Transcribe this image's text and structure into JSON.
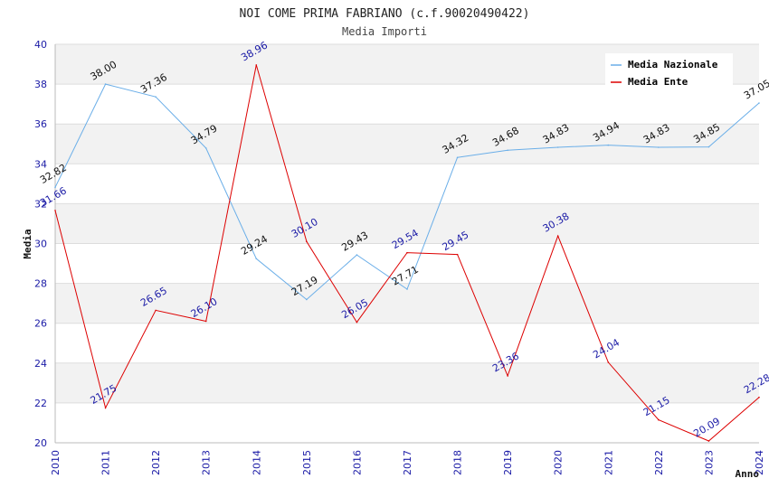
{
  "chart_data": {
    "type": "line",
    "title": "NOI COME PRIMA FABRIANO (c.f.90020490422)",
    "subtitle": "Media Importi",
    "xlabel": "Anno",
    "ylabel": "Media",
    "ylim": [
      20,
      40
    ],
    "yticks": [
      20,
      22,
      24,
      26,
      28,
      30,
      32,
      34,
      36,
      38,
      40
    ],
    "x": [
      "2010",
      "2011",
      "2012",
      "2013",
      "2014",
      "2015",
      "2016",
      "2017",
      "2018",
      "2019",
      "2020",
      "2021",
      "2022",
      "2023",
      "2024"
    ],
    "grid": true,
    "legend_position": "top-right",
    "series": [
      {
        "name": "Media Nazionale",
        "color": "#6aaee8",
        "values": [
          32.82,
          38.0,
          37.36,
          34.79,
          29.24,
          27.19,
          29.43,
          27.71,
          34.32,
          34.68,
          34.83,
          34.94,
          34.83,
          34.85,
          37.05
        ],
        "labels": [
          "32.82",
          "38.00",
          "37.36",
          "34.79",
          "29.24",
          "27.19",
          "29.43",
          "27.71",
          "34.32",
          "34.68",
          "34.83",
          "34.94",
          "34.83",
          "34.85",
          "37.05"
        ]
      },
      {
        "name": "Media Ente",
        "color": "#dd0000",
        "values": [
          31.66,
          21.75,
          26.65,
          26.1,
          38.96,
          30.1,
          26.05,
          29.54,
          29.45,
          23.36,
          30.38,
          24.04,
          21.15,
          20.09,
          22.28
        ],
        "labels": [
          "31.66",
          "21.75",
          "26.65",
          "26.10",
          "38.96",
          "30.10",
          "26.05",
          "29.54",
          "29.45",
          "23.36",
          "30.38",
          "24.04",
          "21.15",
          "20.09",
          "22.28"
        ]
      }
    ]
  }
}
